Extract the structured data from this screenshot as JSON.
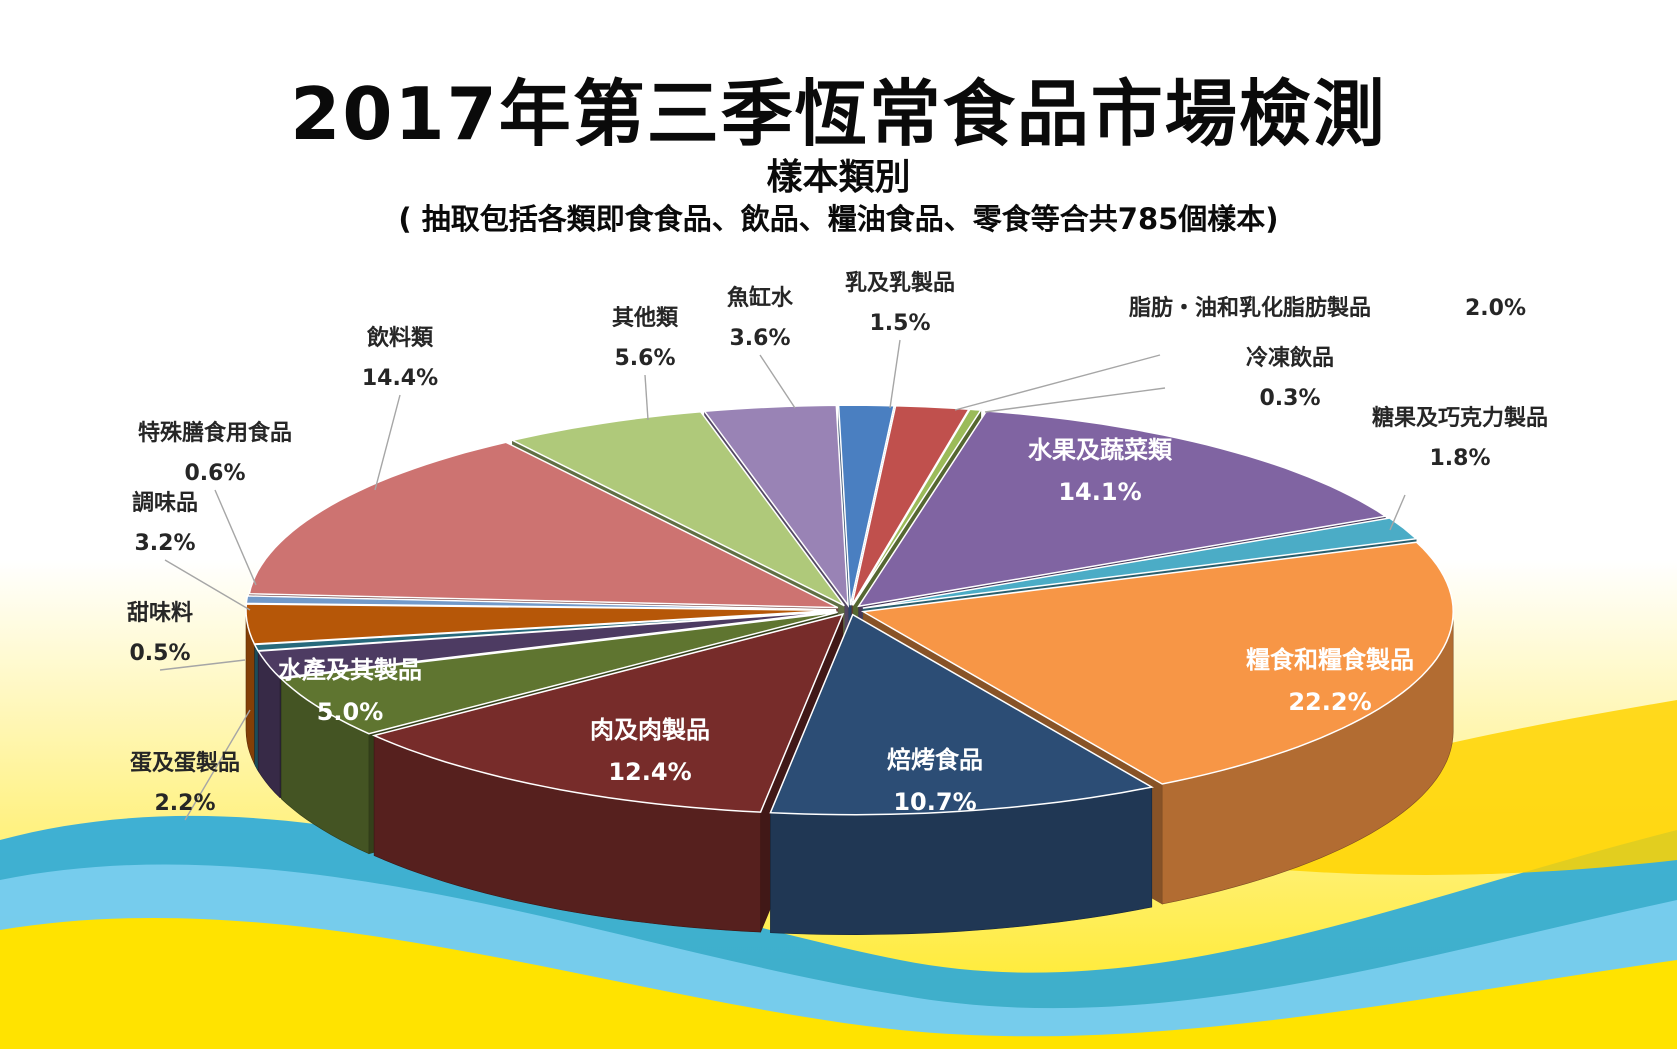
{
  "header": {
    "title": "2017年第三季恆常食品市場檢測",
    "subtitle": "樣本類別",
    "note": "( 抽取包括各類即食食品、飲品、糧油食品、零食等合共785個樣本)"
  },
  "chart_data": {
    "type": "pie",
    "title": "樣本類別",
    "unit": "%",
    "slices": [
      {
        "name": "乳及乳製品",
        "value": 1.5,
        "label": "1.5%",
        "color": "#4a7fc1"
      },
      {
        "name": "脂肪・油和乳化脂肪製品",
        "value": 2.0,
        "label": "2.0%",
        "color": "#c0504d"
      },
      {
        "name": "冷凍飲品",
        "value": 0.3,
        "label": "0.3%",
        "color": "#9bbb59"
      },
      {
        "name": "水果及蔬菜類",
        "value": 14.1,
        "label": "14.1%",
        "color": "#8064a2"
      },
      {
        "name": "糖果及巧克力製品",
        "value": 1.8,
        "label": "1.8%",
        "color": "#4bacc6"
      },
      {
        "name": "糧食和糧食製品",
        "value": 22.2,
        "label": "22.2%",
        "color": "#f79646"
      },
      {
        "name": "焙烤食品",
        "value": 10.7,
        "label": "10.7%",
        "color": "#2c4d75"
      },
      {
        "name": "肉及肉製品",
        "value": 12.4,
        "label": "12.4%",
        "color": "#772c2a"
      },
      {
        "name": "水產及其製品",
        "value": 5.0,
        "label": "5.0%",
        "color": "#5f7530"
      },
      {
        "name": "蛋及蛋製品",
        "value": 2.2,
        "label": "2.2%",
        "color": "#4d3b62"
      },
      {
        "name": "甜味料",
        "value": 0.5,
        "label": "0.5%",
        "color": "#276a7c"
      },
      {
        "name": "調味品",
        "value": 3.2,
        "label": "3.2%",
        "color": "#b65708"
      },
      {
        "name": "特殊膳食用食品",
        "value": 0.6,
        "label": "0.6%",
        "color": "#729aca"
      },
      {
        "name": "飲料類",
        "value": 14.4,
        "label": "14.4%",
        "color": "#cd7371"
      },
      {
        "name": "其他類",
        "value": 5.6,
        "label": "5.6%",
        "color": "#afc97a"
      },
      {
        "name": "魚缸水",
        "value": 3.6,
        "label": "3.6%",
        "color": "#9983b5"
      }
    ]
  }
}
